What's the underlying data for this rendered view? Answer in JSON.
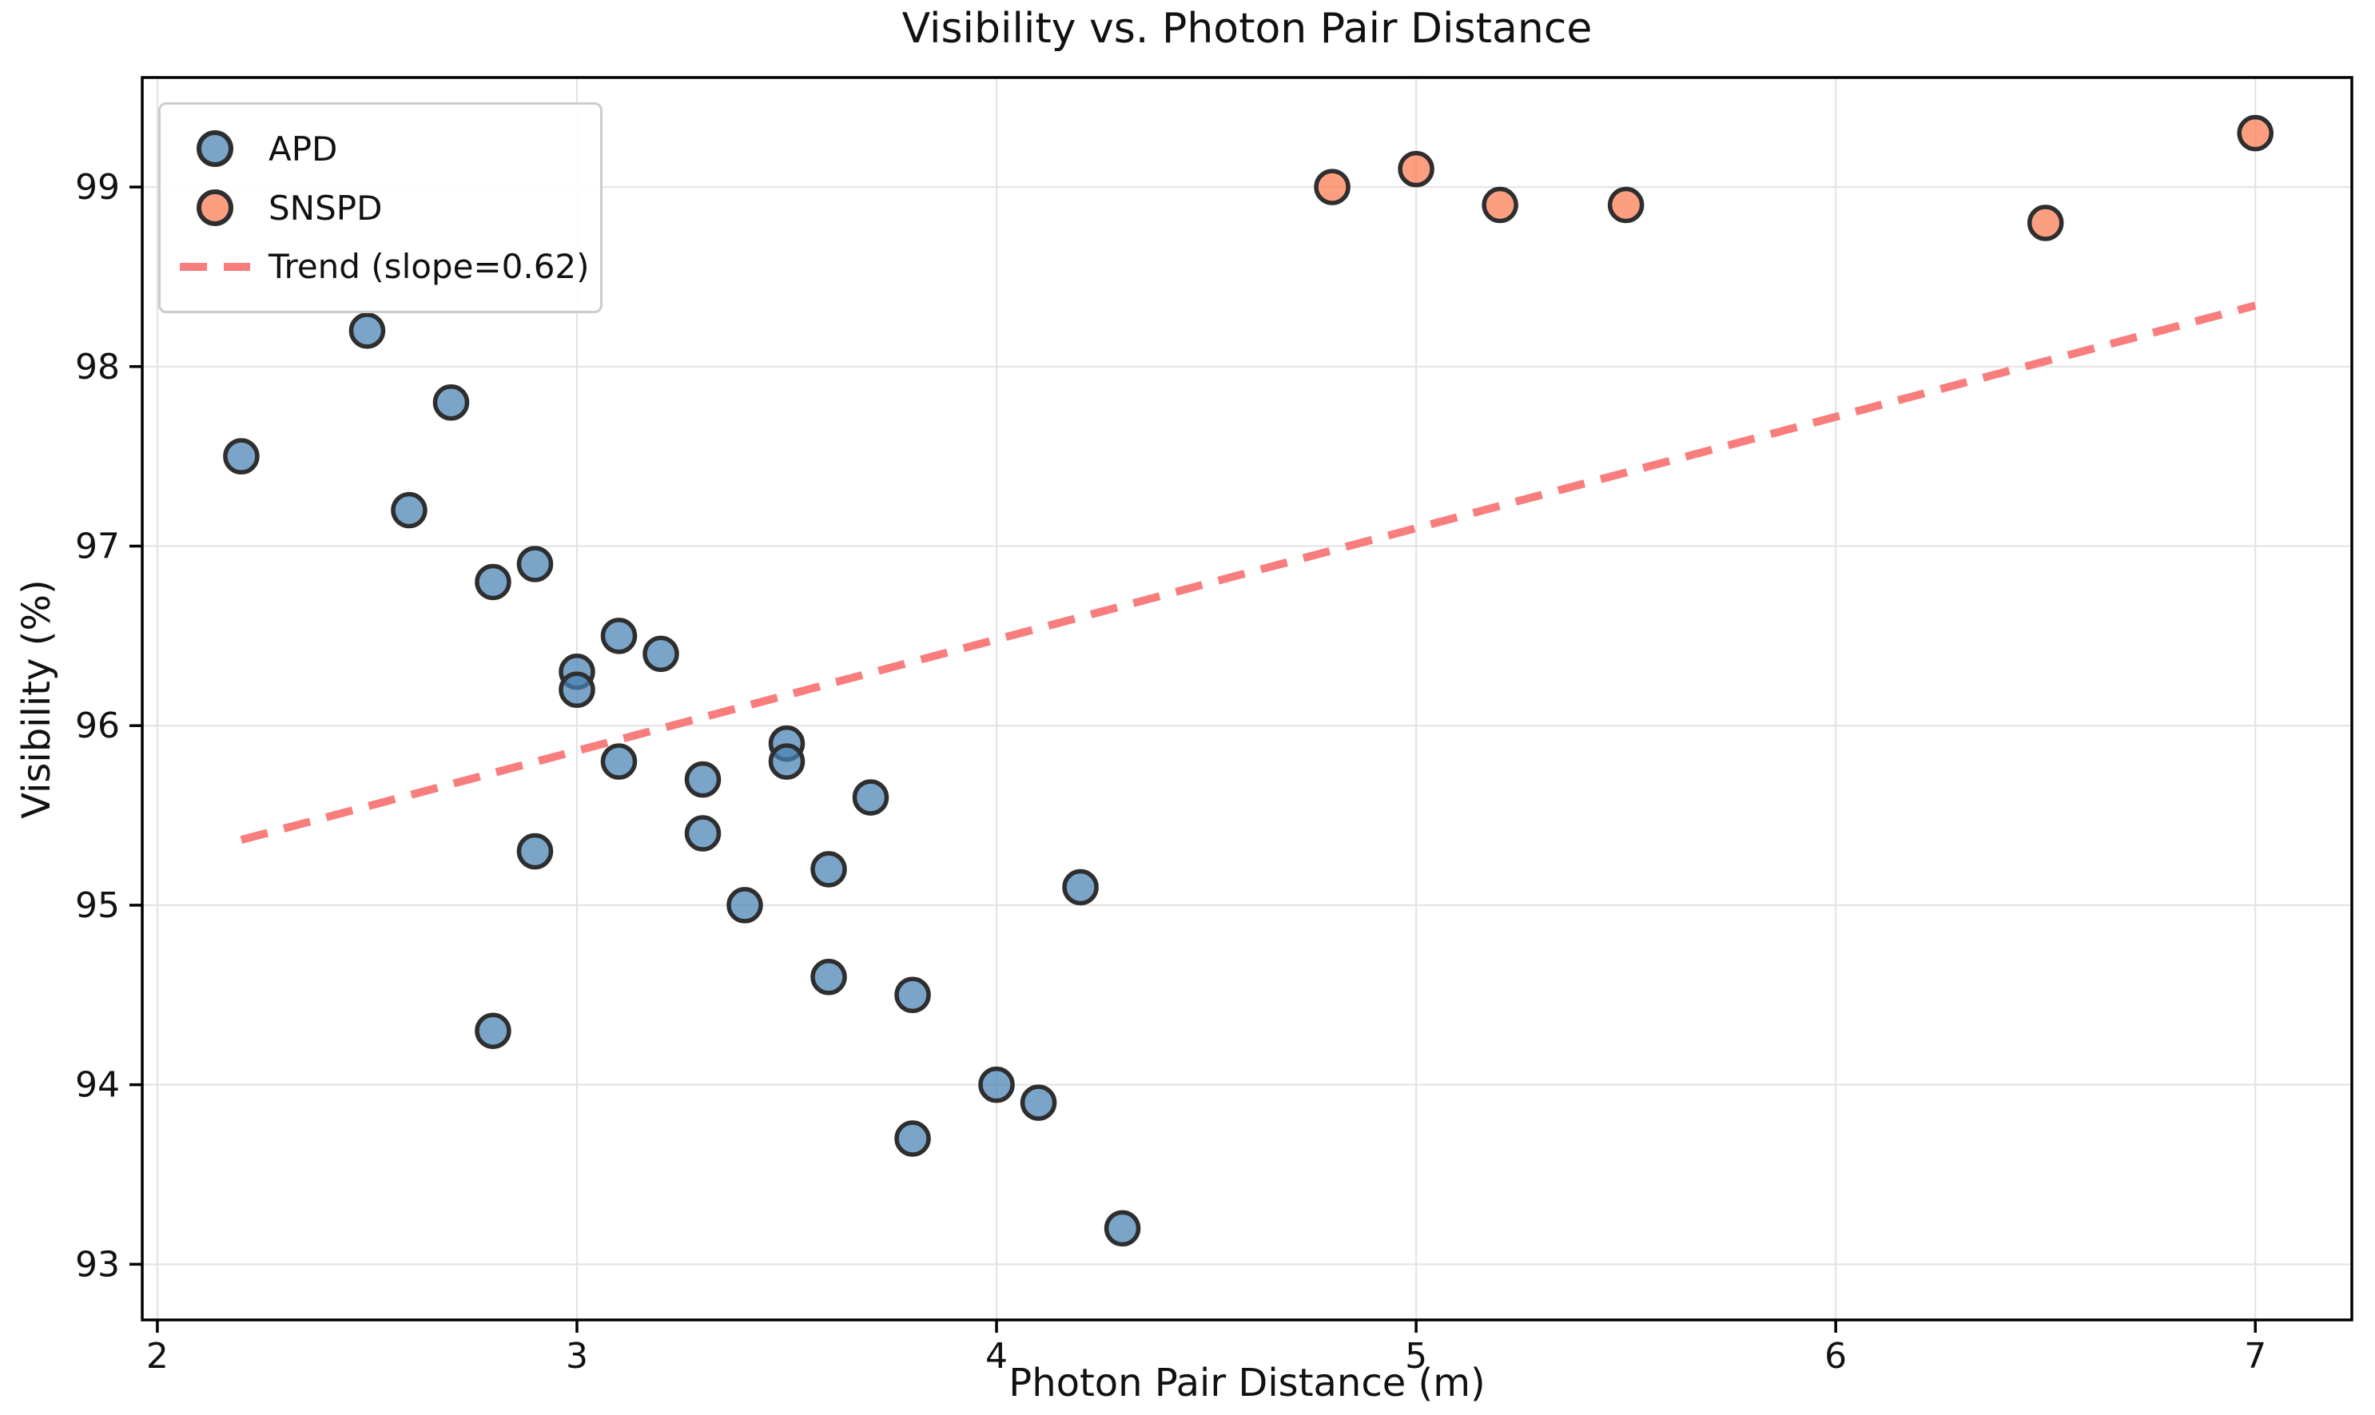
{
  "figure": {
    "title": "Visibility vs. Photon Pair Distance",
    "xlabel": "Photon Pair Distance (m)",
    "ylabel": "Visibility (%)"
  },
  "axes": {
    "x_tick_labels": [
      "2",
      "3",
      "4",
      "5",
      "6",
      "7"
    ],
    "x_tick_values": [
      2,
      3,
      4,
      5,
      6,
      7
    ],
    "y_tick_labels": [
      "93",
      "94",
      "95",
      "96",
      "97",
      "98",
      "99"
    ],
    "y_tick_values": [
      93,
      94,
      95,
      96,
      97,
      98,
      99
    ],
    "xlim": [
      1.964,
      7.23
    ],
    "ylim": [
      92.69,
      99.61
    ],
    "grid": true
  },
  "legend": {
    "position": "upper left",
    "items": [
      {
        "label": "APD",
        "swatch": "circle-marker",
        "color": "#4682B4"
      },
      {
        "label": "SNSPD",
        "swatch": "circle-marker",
        "color": "#FB7A50"
      },
      {
        "label": "Trend (slope=0.62)",
        "swatch": "dashed-line",
        "color": "#F87D7D"
      }
    ]
  },
  "colors": {
    "apd_fill": "#4682B4",
    "snspd_fill": "#FB7A50",
    "marker_edge": "#2E2E2E",
    "trend_line": "#F87D7D",
    "grid_line": "#E2E2E2",
    "spine": "#000000",
    "text": "#111111",
    "background": "#FFFFFF"
  },
  "chart_data": {
    "type": "scatter",
    "title": "Visibility vs. Photon Pair Distance",
    "xlabel": "Photon Pair Distance (m)",
    "ylabel": "Visibility (%)",
    "xlim": [
      1.964,
      7.23
    ],
    "ylim": [
      92.69,
      99.61
    ],
    "grid": true,
    "legend_position": "upper left",
    "series": [
      {
        "name": "APD",
        "color": "#4682B4",
        "marker": "circle",
        "points": [
          [
            2.2,
            97.5
          ],
          [
            2.5,
            98.2
          ],
          [
            2.6,
            97.2
          ],
          [
            2.7,
            97.8
          ],
          [
            2.8,
            96.8
          ],
          [
            2.9,
            96.9
          ],
          [
            3.0,
            96.3
          ],
          [
            3.0,
            96.2
          ],
          [
            3.1,
            96.5
          ],
          [
            3.2,
            96.4
          ],
          [
            3.1,
            95.8
          ],
          [
            2.9,
            95.3
          ],
          [
            2.8,
            94.3
          ],
          [
            3.3,
            95.7
          ],
          [
            3.3,
            95.4
          ],
          [
            3.4,
            95.0
          ],
          [
            3.5,
            95.9
          ],
          [
            3.5,
            95.8
          ],
          [
            3.6,
            95.2
          ],
          [
            3.7,
            95.6
          ],
          [
            3.6,
            94.6
          ],
          [
            3.8,
            94.5
          ],
          [
            3.8,
            93.7
          ],
          [
            4.0,
            94.0
          ],
          [
            4.1,
            93.9
          ],
          [
            4.2,
            95.1
          ],
          [
            4.3,
            93.2
          ]
        ]
      },
      {
        "name": "SNSPD",
        "color": "#FB7A50",
        "marker": "circle",
        "points": [
          [
            4.8,
            99.0
          ],
          [
            5.0,
            99.1
          ],
          [
            5.2,
            98.9
          ],
          [
            5.5,
            98.9
          ],
          [
            6.5,
            98.8
          ],
          [
            7.0,
            99.3
          ]
        ]
      }
    ],
    "trend": {
      "label": "Trend (slope=0.62)",
      "slope": 0.62,
      "intercept": 94.0,
      "x_start": 2.2,
      "x_end": 7.0,
      "style": "dashed",
      "color": "#F87D7D"
    }
  }
}
